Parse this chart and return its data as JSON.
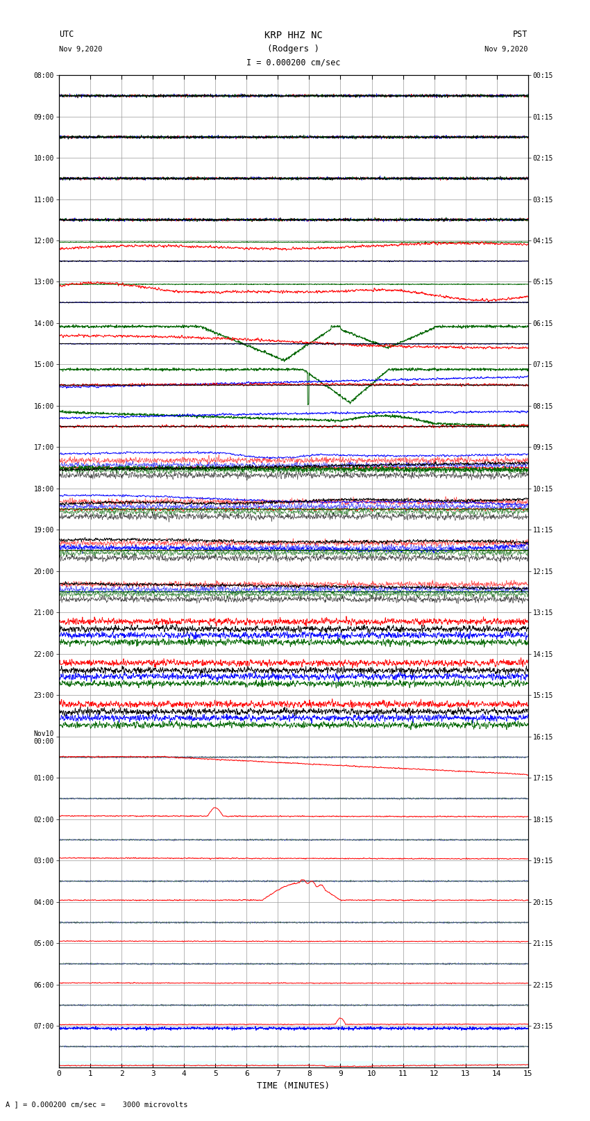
{
  "title_line1": "KRP HHZ NC",
  "title_line2": "(Rodgers )",
  "title_line3": "I = 0.000200 cm/sec",
  "left_label_top": "UTC",
  "left_label_date": "Nov 9,2020",
  "right_label_top": "PST",
  "right_label_date": "Nov 9,2020",
  "xlabel": "TIME (MINUTES)",
  "bottom_label": "A ] = 0.000200 cm/sec =    3000 microvolts",
  "utc_times": [
    "08:00",
    "09:00",
    "10:00",
    "11:00",
    "12:00",
    "13:00",
    "14:00",
    "15:00",
    "16:00",
    "17:00",
    "18:00",
    "19:00",
    "20:00",
    "21:00",
    "22:00",
    "23:00",
    "Nov10\n00:00",
    "01:00",
    "02:00",
    "03:00",
    "04:00",
    "05:00",
    "06:00",
    "07:00"
  ],
  "pst_times": [
    "00:15",
    "01:15",
    "02:15",
    "03:15",
    "04:15",
    "05:15",
    "06:15",
    "07:15",
    "08:15",
    "09:15",
    "10:15",
    "11:15",
    "12:15",
    "13:15",
    "14:15",
    "15:15",
    "16:15",
    "17:15",
    "18:15",
    "19:15",
    "20:15",
    "21:15",
    "22:15",
    "23:15"
  ],
  "n_rows": 24,
  "x_max": 15,
  "background": "#ffffff",
  "grid_color": "#999999",
  "red": "#ff0000",
  "blue": "#0000ff",
  "green": "#006600",
  "black": "#000000"
}
